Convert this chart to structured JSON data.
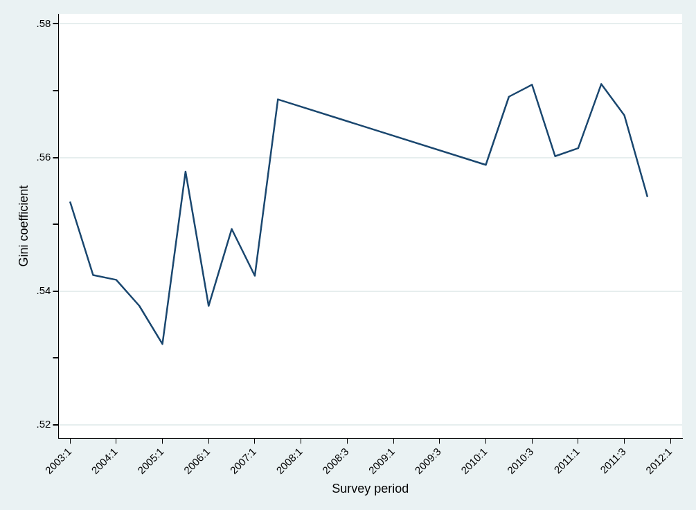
{
  "chart_data": {
    "type": "line",
    "xlabel": "Survey period",
    "ylabel": "Gini coefficient",
    "categories": [
      "2003:1",
      null,
      "2004:1",
      null,
      "2005:1",
      null,
      "2006:1",
      null,
      "2007:1",
      null,
      "2008:1",
      null,
      "2008:3",
      null,
      "2009:1",
      null,
      "2009:3",
      null,
      "2010:1",
      null,
      "2010:3",
      null,
      "2011:1",
      null,
      "2011:3",
      null,
      "2012:1"
    ],
    "series": [
      {
        "color": "#1a476f",
        "values": [
          0.5534,
          0.5424,
          0.5417,
          0.5378,
          0.5321,
          0.5579,
          0.5378,
          0.5493,
          0.5423,
          0.5687,
          null,
          null,
          null,
          null,
          null,
          null,
          null,
          null,
          0.5589,
          0.5691,
          0.5709,
          0.5602,
          0.5614,
          0.571,
          0.5663,
          0.5541,
          null
        ]
      }
    ],
    "ylim": [
      0.518,
      0.5815
    ],
    "yticks": [
      {
        "value": 0.52,
        "label": ".52"
      },
      {
        "value": 0.53,
        "label": null
      },
      {
        "value": 0.54,
        "label": ".54"
      },
      {
        "value": 0.55,
        "label": null
      },
      {
        "value": 0.56,
        "label": ".56"
      },
      {
        "value": 0.57,
        "label": null
      },
      {
        "value": 0.58,
        "label": ".58"
      }
    ],
    "grid": "y",
    "legend": false,
    "marker": "none",
    "line_style": "solid"
  }
}
